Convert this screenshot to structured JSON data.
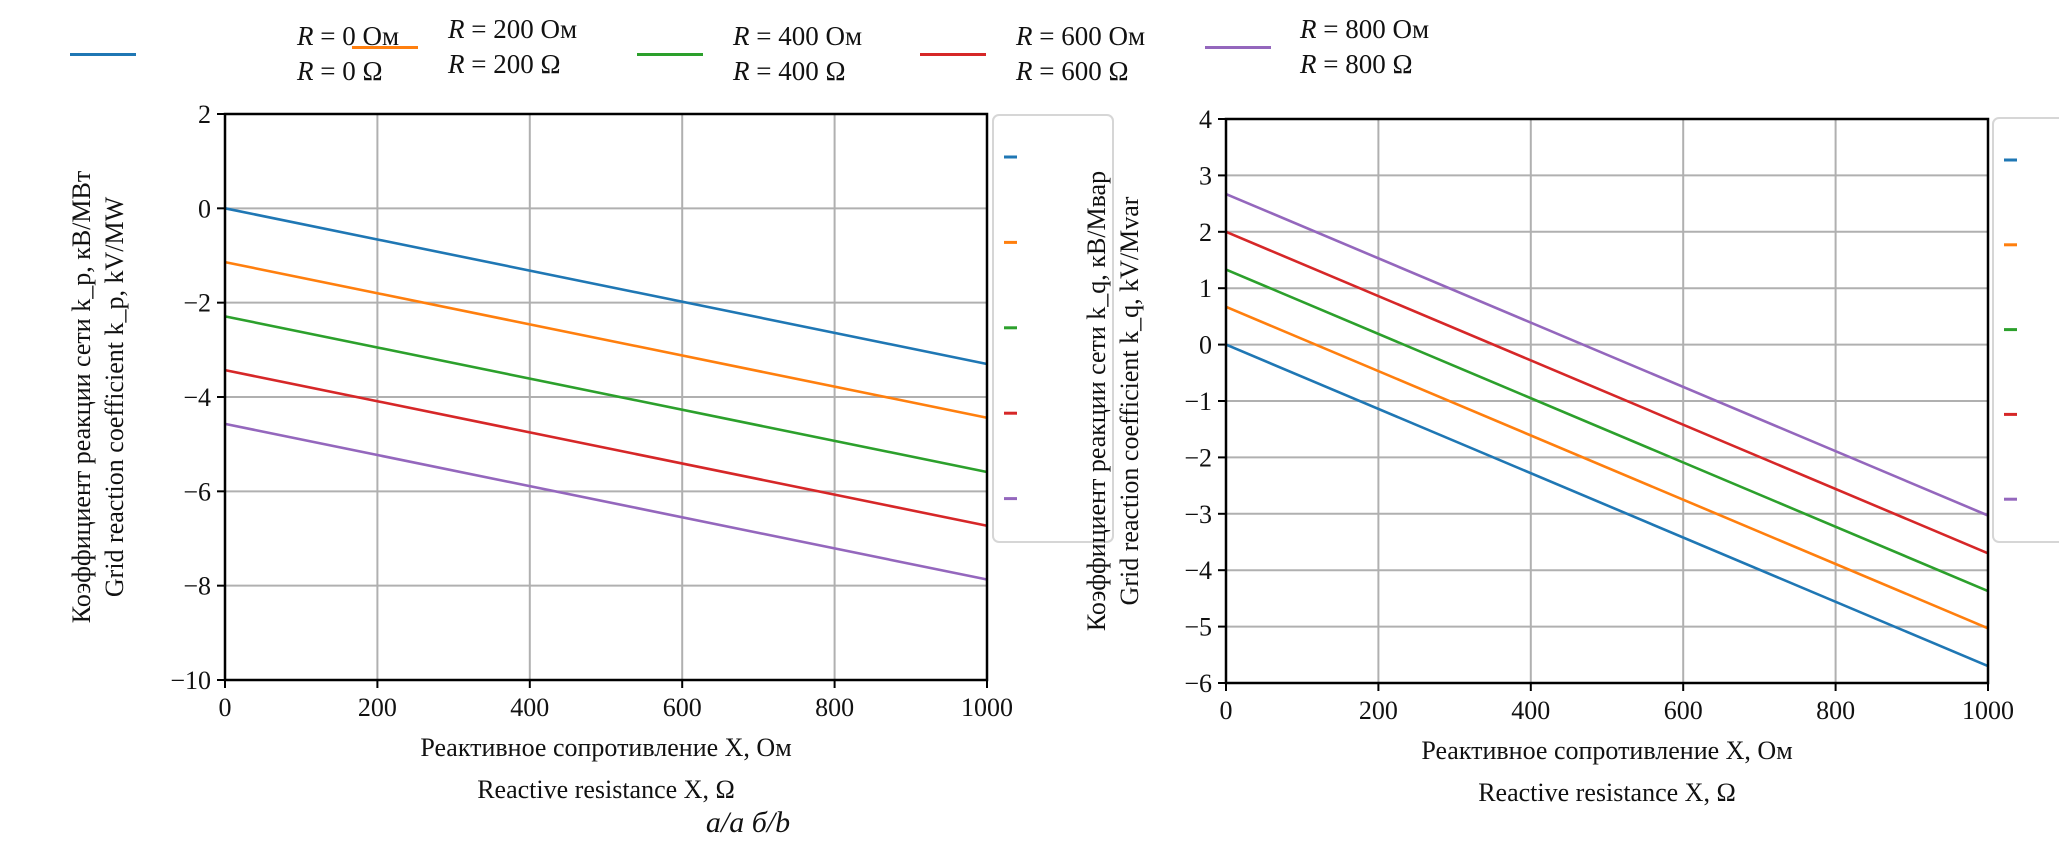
{
  "legend": {
    "placement": "top",
    "entries": [
      {
        "ru": "R = 0 Ом",
        "en": "R = 0 Ω",
        "color": "#1f77b4"
      },
      {
        "ru": "R = 200 Ом",
        "en": "R = 200 Ω",
        "color": "#ff7f0e"
      },
      {
        "ru": "R = 400 Ом",
        "en": "R = 400 Ω",
        "color": "#2ca02c"
      },
      {
        "ru": "R = 600 Ом",
        "en": "R = 600 Ω",
        "color": "#d62728"
      },
      {
        "ru": "R = 800 Ом",
        "en": "R = 800 Ω",
        "color": "#9467bd"
      }
    ]
  },
  "caption": "a/a б/b",
  "chart_data": [
    {
      "type": "line",
      "panel": "a",
      "title": "",
      "xlabel_ru": "Реактивное сопротивление X, Ом",
      "xlabel_en": "Reactive resistance X, Ω",
      "ylabel_ru": "Коэффициент реакции сети k_p, кВ/МВт",
      "ylabel_en": "Grid reaction coefficient k_p, kV/MW",
      "xlim": [
        0,
        1000
      ],
      "ylim": [
        -10,
        2
      ],
      "xticks": [
        0,
        200,
        400,
        600,
        800,
        1000
      ],
      "yticks": [
        2,
        0,
        -2,
        -4,
        -6,
        -8,
        -10
      ],
      "grid": true,
      "x": [
        0,
        1000
      ],
      "series": [
        {
          "name": "R = 0 Ω",
          "color": "#1f77b4",
          "values": [
            0.0,
            -3.3
          ]
        },
        {
          "name": "R = 200 Ω",
          "color": "#ff7f0e",
          "values": [
            -1.14,
            -4.44
          ]
        },
        {
          "name": "R = 400 Ω",
          "color": "#2ca02c",
          "values": [
            -2.29,
            -5.59
          ]
        },
        {
          "name": "R = 600 Ω",
          "color": "#d62728",
          "values": [
            -3.43,
            -6.73
          ]
        },
        {
          "name": "R = 800 Ω",
          "color": "#9467bd",
          "values": [
            -4.57,
            -7.87
          ]
        }
      ],
      "inner_legend": "right (clipped, markers only)"
    },
    {
      "type": "line",
      "panel": "b",
      "title": "",
      "xlabel_ru": "Реактивное сопротивление X, Ом",
      "xlabel_en": "Reactive resistance X, Ω",
      "ylabel_ru": "Коэффициент реакции сети k_q, кВ/Мвар",
      "ylabel_en": "Grid reaction coefficient k_q, kV/Mvar",
      "xlim": [
        0,
        1000
      ],
      "ylim": [
        -6,
        4
      ],
      "xticks": [
        0,
        200,
        400,
        600,
        800,
        1000
      ],
      "yticks": [
        4,
        3,
        2,
        1,
        0,
        -1,
        -2,
        -3,
        -4,
        -5,
        -6
      ],
      "grid": true,
      "x": [
        0,
        1000
      ],
      "series": [
        {
          "name": "R = 0 Ω",
          "color": "#1f77b4",
          "values": [
            0.0,
            -5.7
          ]
        },
        {
          "name": "R = 200 Ω",
          "color": "#ff7f0e",
          "values": [
            0.67,
            -5.03
          ]
        },
        {
          "name": "R = 400 Ω",
          "color": "#2ca02c",
          "values": [
            1.33,
            -4.37
          ]
        },
        {
          "name": "R = 600 Ω",
          "color": "#d62728",
          "values": [
            2.0,
            -3.7
          ]
        },
        {
          "name": "R = 800 Ω",
          "color": "#9467bd",
          "values": [
            2.67,
            -3.03
          ]
        }
      ],
      "inner_legend": "right (clipped, markers only)"
    }
  ]
}
